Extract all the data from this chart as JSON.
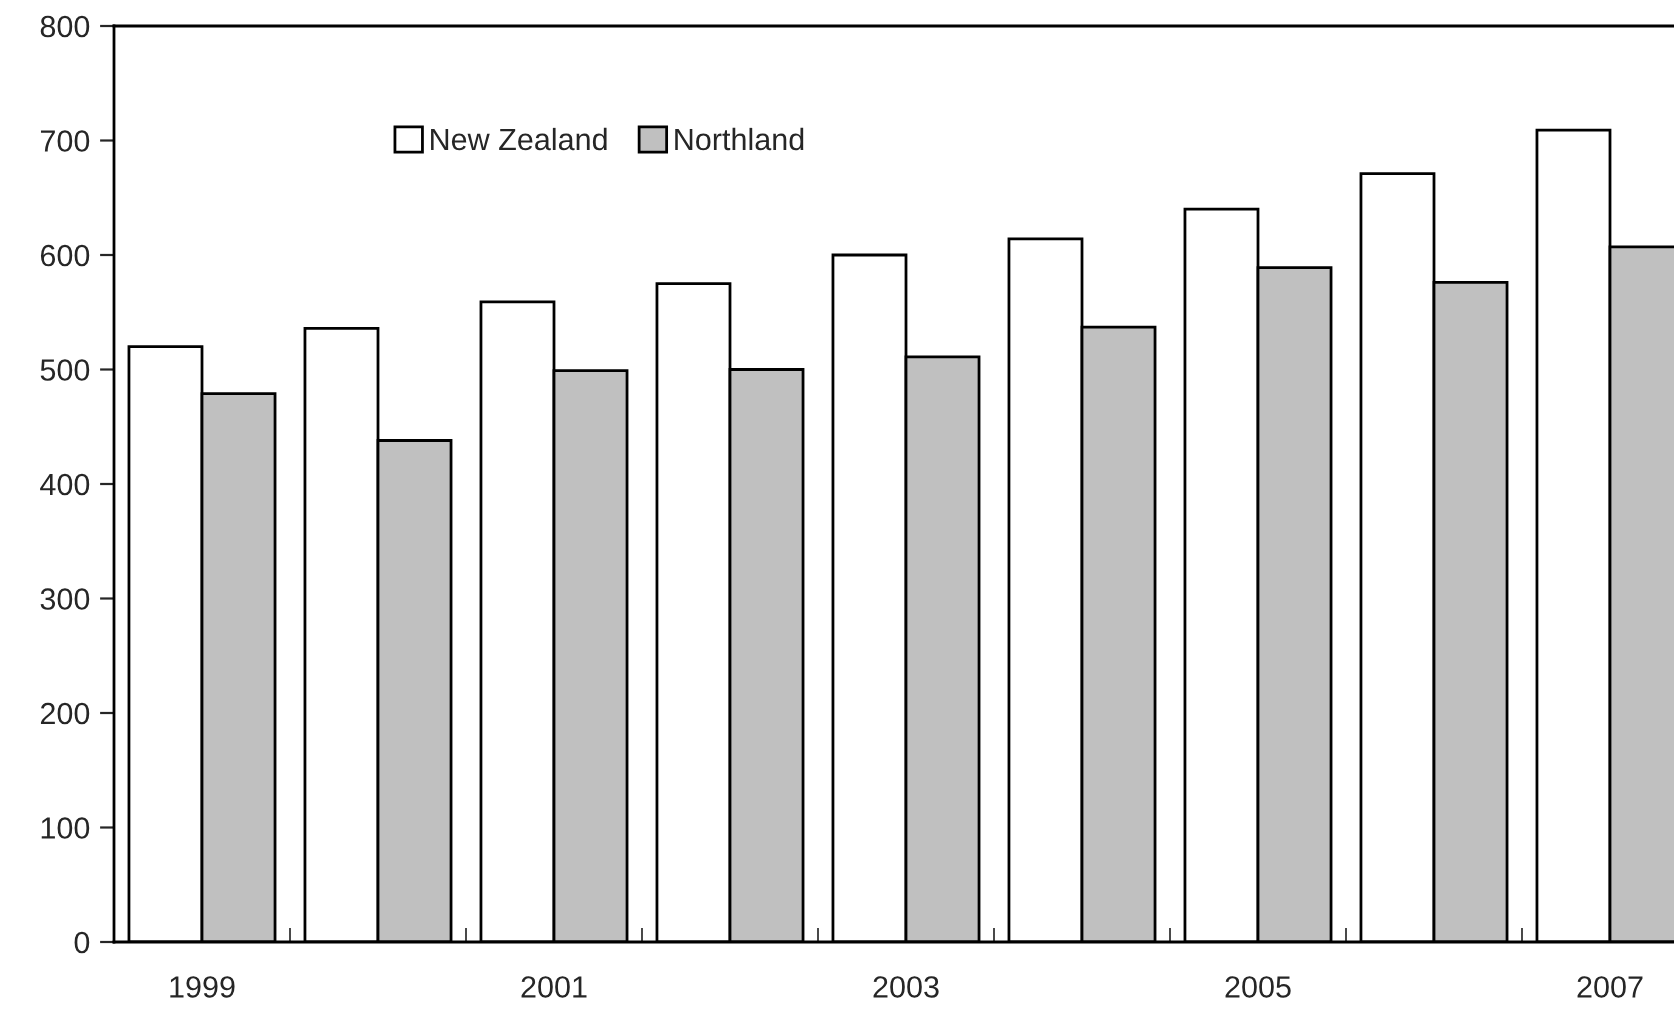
{
  "chart_data": {
    "type": "bar",
    "categories": [
      "1999",
      null,
      "2001",
      null,
      "2003",
      null,
      "2005",
      null,
      "2007"
    ],
    "series": [
      {
        "name": "New Zealand",
        "color": "#ffffff",
        "values": [
          520,
          536,
          559,
          575,
          600,
          614,
          640,
          671,
          709
        ]
      },
      {
        "name": "Northland",
        "color": "#c0c0c0",
        "values": [
          479,
          438,
          499,
          500,
          511,
          537,
          589,
          576,
          607
        ]
      }
    ],
    "ylim": [
      0,
      800
    ],
    "yticks": [
      0,
      100,
      200,
      300,
      400,
      500,
      600,
      700,
      800
    ],
    "grid": false,
    "legend": "top left"
  }
}
